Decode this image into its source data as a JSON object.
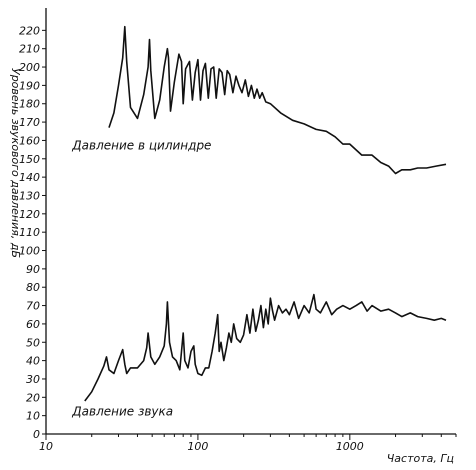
{
  "chart_data": {
    "type": "line",
    "title": "",
    "xlabel": "Частота, Гц",
    "ylabel": "Уровень звукового давления, дБ",
    "x_scale": "log",
    "xlim": [
      10,
      5000
    ],
    "ylim": [
      0,
      230
    ],
    "x_ticks": [
      10,
      100,
      1000
    ],
    "y_ticks": [
      0,
      10,
      20,
      30,
      40,
      50,
      60,
      70,
      80,
      90,
      100,
      110,
      120,
      130,
      140,
      150,
      160,
      170,
      180,
      190,
      200,
      210,
      220
    ],
    "grid": false,
    "annotations": [
      {
        "text": "Давление в цилиндре",
        "x": 11,
        "y": 155
      },
      {
        "text": "Давление звука",
        "x": 11,
        "y": 10
      }
    ],
    "series": [
      {
        "name": "Давление в цилиндре",
        "x": [
          26,
          28,
          30,
          32,
          33,
          34,
          36,
          40,
          44,
          47,
          48,
          49,
          52,
          56,
          60,
          63,
          64,
          66,
          70,
          75,
          78,
          80,
          83,
          88,
          92,
          96,
          100,
          104,
          108,
          112,
          117,
          122,
          127,
          132,
          138,
          144,
          150,
          156,
          162,
          170,
          178,
          186,
          195,
          205,
          215,
          225,
          235,
          245,
          255,
          265,
          280,
          300,
          350,
          420,
          500,
          600,
          700,
          800,
          900,
          1000,
          1200,
          1400,
          1600,
          1800,
          2000,
          2200,
          2500,
          2800,
          3200,
          3700,
          4300
        ],
        "y": [
          167,
          175,
          190,
          205,
          222,
          203,
          178,
          172,
          185,
          200,
          215,
          198,
          172,
          182,
          200,
          210,
          205,
          176,
          192,
          207,
          203,
          180,
          199,
          203,
          182,
          197,
          204,
          182,
          198,
          202,
          183,
          199,
          200,
          183,
          199,
          197,
          185,
          198,
          196,
          186,
          195,
          190,
          186,
          193,
          184,
          190,
          183,
          188,
          183,
          186,
          181,
          180,
          175,
          171,
          169,
          166,
          165,
          162,
          158,
          158,
          152,
          152,
          148,
          146,
          142,
          144,
          144,
          145,
          145,
          146,
          147
        ]
      },
      {
        "name": "Давление звука",
        "x": [
          18,
          20,
          22,
          24,
          25,
          26,
          28,
          30,
          32,
          33,
          34,
          36,
          40,
          44,
          46,
          47,
          49,
          52,
          56,
          60,
          62,
          63,
          65,
          68,
          72,
          76,
          78,
          80,
          82,
          86,
          90,
          94,
          96,
          100,
          106,
          112,
          118,
          124,
          130,
          135,
          138,
          142,
          148,
          154,
          160,
          166,
          172,
          180,
          190,
          200,
          210,
          220,
          230,
          240,
          250,
          260,
          270,
          280,
          290,
          300,
          310,
          320,
          340,
          360,
          380,
          400,
          430,
          460,
          500,
          540,
          580,
          600,
          640,
          700,
          760,
          820,
          900,
          1000,
          1100,
          1200,
          1300,
          1400,
          1600,
          1800,
          2000,
          2200,
          2500,
          2800,
          3200,
          3600,
          4000,
          4300
        ],
        "y": [
          18,
          23,
          30,
          37,
          42,
          35,
          33,
          40,
          46,
          38,
          33,
          36,
          36,
          40,
          47,
          55,
          42,
          38,
          42,
          48,
          60,
          72,
          50,
          42,
          40,
          35,
          45,
          55,
          40,
          36,
          45,
          48,
          38,
          33,
          32,
          36,
          36,
          45,
          55,
          65,
          45,
          50,
          40,
          47,
          55,
          50,
          60,
          52,
          50,
          54,
          65,
          55,
          68,
          56,
          62,
          70,
          58,
          68,
          60,
          74,
          67,
          62,
          70,
          66,
          68,
          65,
          72,
          63,
          70,
          66,
          76,
          68,
          66,
          72,
          65,
          68,
          70,
          68,
          70,
          72,
          67,
          70,
          67,
          68,
          66,
          64,
          66,
          64,
          63,
          62,
          63,
          62
        ]
      }
    ]
  }
}
